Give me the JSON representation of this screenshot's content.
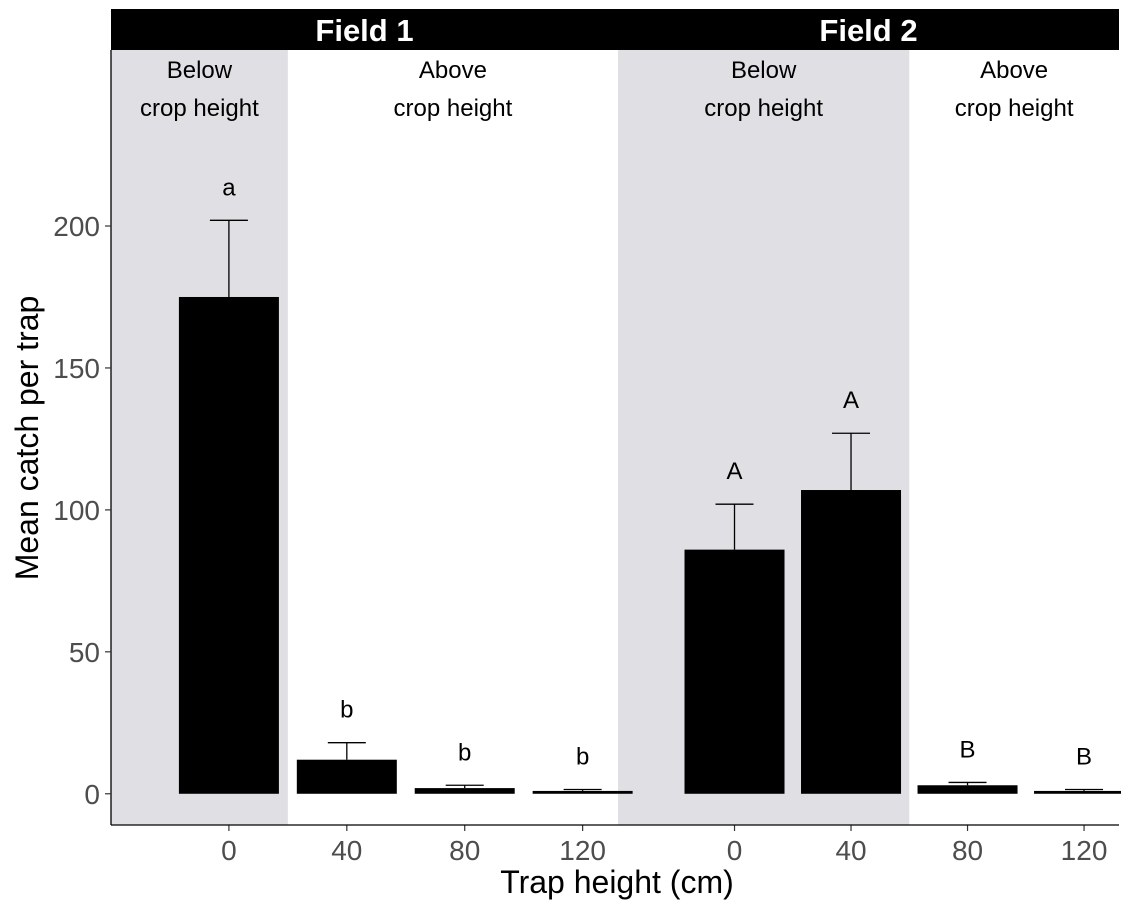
{
  "chart_data": {
    "type": "bar",
    "title": "",
    "xlabel": "Trap height (cm)",
    "ylabel": "Mean catch per trap",
    "ylim": [
      -11,
      262
    ],
    "yticks": [
      0,
      50,
      100,
      150,
      200
    ],
    "grid": false,
    "bar_color": "#000000",
    "shade_color": "#e0e0e4",
    "strip_color": "#000000",
    "panels": [
      {
        "label": "Field 1",
        "regions": [
          {
            "label_lines": [
              "Below",
              "crop height"
            ],
            "shaded": true,
            "bars": 1
          },
          {
            "label_lines": [
              "Above",
              "crop height"
            ],
            "shaded": false,
            "bars": 3
          }
        ],
        "categories": [
          "0",
          "40",
          "80",
          "120"
        ],
        "values": [
          175,
          12,
          2,
          1
        ],
        "error_upper": [
          202,
          18,
          3,
          1.5
        ],
        "sig_labels": [
          "a",
          "b",
          "b",
          "b"
        ]
      },
      {
        "label": "Field 2",
        "regions": [
          {
            "label_lines": [
              "Below",
              "crop height"
            ],
            "shaded": true,
            "bars": 2
          },
          {
            "label_lines": [
              "Above",
              "crop height"
            ],
            "shaded": false,
            "bars": 2
          }
        ],
        "categories": [
          "0",
          "40",
          "80",
          "120"
        ],
        "values": [
          86,
          107,
          3,
          1
        ],
        "error_upper": [
          102,
          127,
          4,
          1.5
        ],
        "sig_labels": [
          "A",
          "A",
          "B",
          "B"
        ]
      }
    ]
  }
}
